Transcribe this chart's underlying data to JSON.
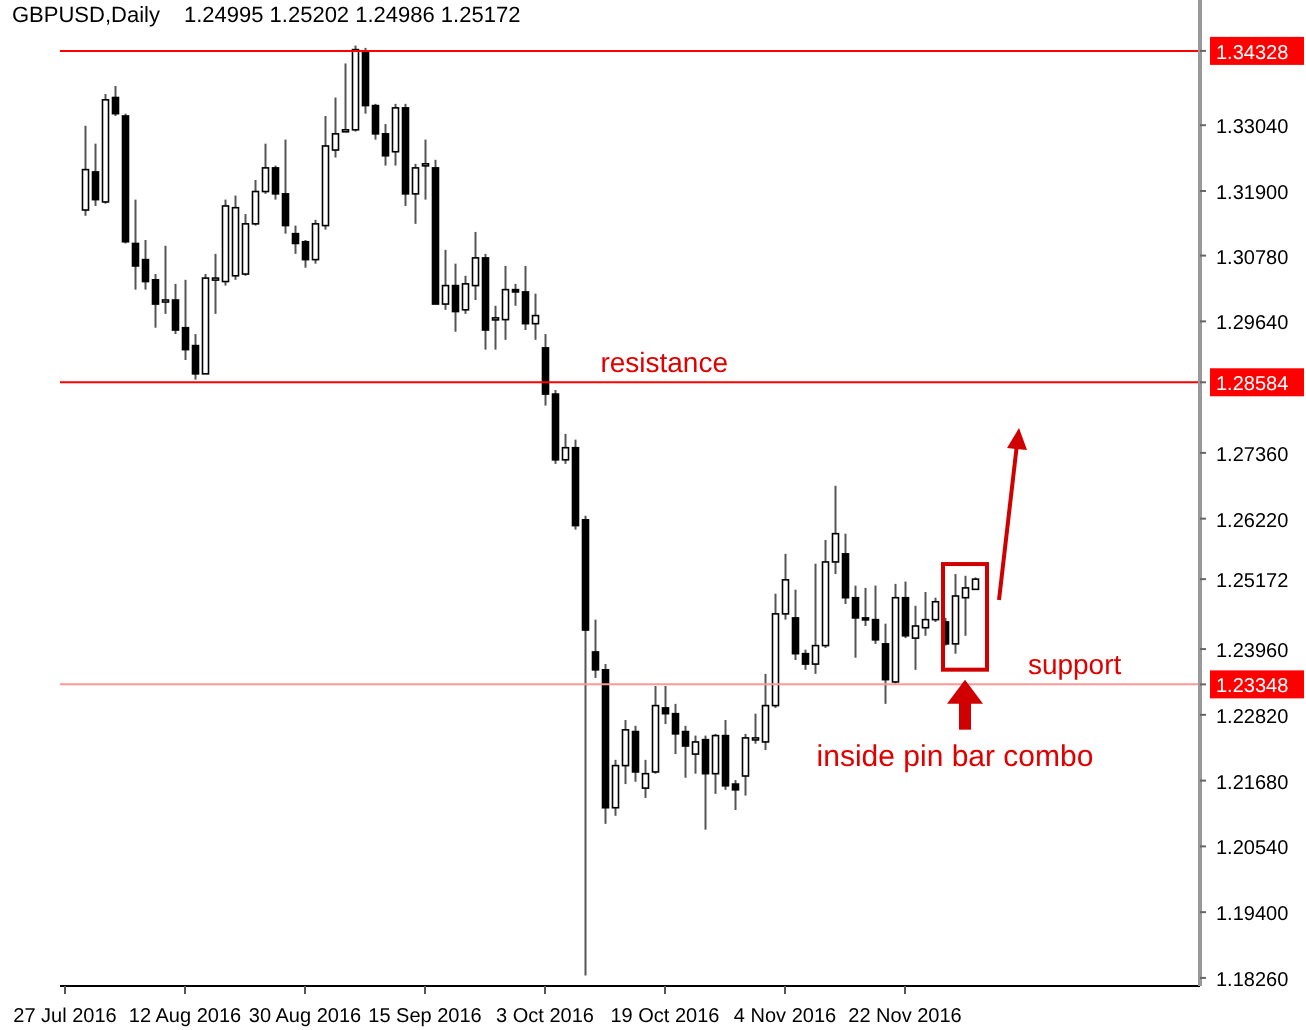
{
  "chart_data": {
    "type": "candlestick",
    "title": "GBPUSD,Daily",
    "subtitle": "1.24995 1.25202 1.24986 1.25172",
    "categories": [
      "27 Jul 2016",
      null,
      null,
      null,
      null,
      null,
      null,
      null,
      null,
      null,
      null,
      null,
      "12 Aug 2016",
      null,
      null,
      null,
      null,
      null,
      null,
      null,
      null,
      null,
      null,
      null,
      "30 Aug 2016",
      null,
      null,
      null,
      null,
      null,
      null,
      null,
      null,
      null,
      null,
      null,
      "15 Sep 2016",
      null,
      null,
      null,
      null,
      null,
      null,
      null,
      null,
      null,
      null,
      null,
      "3 Oct 2016",
      null,
      null,
      null,
      null,
      null,
      null,
      null,
      null,
      null,
      null,
      null,
      "19 Oct 2016",
      null,
      null,
      null,
      null,
      null,
      null,
      null,
      null,
      null,
      null,
      null,
      "4 Nov 2016",
      null,
      null,
      null,
      null,
      null,
      null,
      null,
      null,
      null,
      null,
      null,
      "22 Nov 2016",
      null,
      null,
      null,
      null,
      null,
      null,
      null,
      null,
      null,
      null,
      null,
      null,
      null,
      null,
      null,
      null,
      null,
      null,
      null,
      null,
      null,
      null,
      null,
      null,
      null,
      null,
      null,
      null,
      null
    ],
    "ohlc": [
      null,
      null,
      [
        1.3157,
        1.3303,
        1.3147,
        1.3227
      ],
      [
        1.3223,
        1.3272,
        1.3164,
        1.3175
      ],
      [
        1.3171,
        1.3358,
        1.3168,
        1.3348
      ],
      [
        1.3352,
        1.3372,
        1.332,
        1.3324
      ],
      [
        1.332,
        1.3324,
        1.3099,
        1.3102
      ],
      [
        1.3099,
        1.3175,
        1.3019,
        1.306
      ],
      [
        1.3071,
        1.3105,
        1.3019,
        1.3033
      ],
      [
        1.3036,
        1.3046,
        1.2953,
        1.2994
      ],
      [
        1.2998,
        1.3095,
        1.2977,
        1.3001
      ],
      [
        1.3001,
        1.3029,
        1.2942,
        1.2949
      ],
      [
        1.2953,
        1.3036,
        1.2897,
        1.2915
      ],
      [
        1.2922,
        1.2942,
        1.2863,
        1.2873
      ],
      [
        1.2873,
        1.3046,
        1.2873,
        1.3039
      ],
      [
        1.3036,
        1.3081,
        1.2977,
        1.3039
      ],
      [
        1.3033,
        1.3175,
        1.3026,
        1.3164
      ],
      [
        1.3043,
        1.3182,
        1.3036,
        1.3161
      ],
      [
        1.3046,
        1.315,
        1.3043,
        1.3133
      ],
      [
        1.3133,
        1.3209,
        1.313,
        1.3189
      ],
      [
        1.3189,
        1.3272,
        1.3185,
        1.323
      ],
      [
        1.323,
        1.3234,
        1.3175,
        1.3185
      ],
      [
        1.3185,
        1.3279,
        1.3116,
        1.313
      ],
      [
        1.3116,
        1.313,
        1.3081,
        1.3099
      ],
      [
        1.3102,
        1.3105,
        1.3057,
        1.3071
      ],
      [
        1.3071,
        1.314,
        1.3064,
        1.3133
      ],
      [
        1.313,
        1.332,
        1.3123,
        1.3268
      ],
      [
        1.3261,
        1.3352,
        1.3248,
        1.3289
      ],
      [
        1.3293,
        1.3411,
        1.3293,
        1.3296
      ],
      [
        1.3296,
        1.3442,
        1.3293,
        1.3435
      ],
      [
        1.3431,
        1.3438,
        1.3324,
        1.3338
      ],
      [
        1.3338,
        1.3341,
        1.3279,
        1.3289
      ],
      [
        1.3289,
        1.3306,
        1.3234,
        1.3251
      ],
      [
        1.3258,
        1.3341,
        1.3234,
        1.3334
      ],
      [
        1.3334,
        1.3341,
        1.3164,
        1.3185
      ],
      [
        1.3185,
        1.3237,
        1.3133,
        1.323
      ],
      [
        1.3234,
        1.3279,
        1.3175,
        1.3237
      ],
      [
        1.323,
        1.3244,
        1.2994,
        1.2994
      ],
      [
        1.2994,
        1.3088,
        1.2984,
        1.3026
      ],
      [
        1.3026,
        1.3064,
        1.2946,
        1.2981
      ],
      [
        1.2984,
        1.3043,
        1.2977,
        1.3029
      ],
      [
        1.3026,
        1.3119,
        1.3001,
        1.3074
      ],
      [
        1.3074,
        1.3081,
        1.2915,
        1.2949
      ],
      [
        1.2967,
        1.2991,
        1.2915,
        1.297
      ],
      [
        1.2967,
        1.306,
        1.2932,
        1.3019
      ],
      [
        1.3019,
        1.3029,
        1.2991,
        1.3015
      ],
      [
        1.3015,
        1.306,
        1.2949,
        1.296
      ],
      [
        1.296,
        1.3012,
        1.2932,
        1.2974
      ],
      [
        1.2918,
        1.2942,
        1.2818,
        1.2838
      ],
      [
        1.2838,
        1.2845,
        1.2717,
        1.2724
      ],
      [
        1.2724,
        1.2769,
        1.2717,
        1.2745
      ],
      [
        1.2745,
        1.2759,
        1.2603,
        1.261
      ],
      [
        1.262,
        1.2627,
        1.183,
        1.2429
      ],
      [
        1.2391,
        1.2447,
        1.2346,
        1.236
      ],
      [
        1.236,
        1.237,
        1.2093,
        1.2121
      ],
      [
        1.2121,
        1.2204,
        1.2107,
        1.2194
      ],
      [
        1.2194,
        1.2273,
        1.2162,
        1.2256
      ],
      [
        1.2253,
        1.2263,
        1.2166,
        1.2183
      ],
      [
        1.2155,
        1.2204,
        1.2138,
        1.218
      ],
      [
        1.2183,
        1.2332,
        1.218,
        1.2298
      ],
      [
        1.2294,
        1.2332,
        1.2266,
        1.2284
      ],
      [
        1.2284,
        1.2301,
        1.2214,
        1.2249
      ],
      [
        1.2253,
        1.2263,
        1.2173,
        1.2228
      ],
      [
        1.2214,
        1.2246,
        1.218,
        1.2235
      ],
      [
        1.2239,
        1.2246,
        1.2083,
        1.218
      ],
      [
        1.218,
        1.2249,
        1.2145,
        1.2246
      ],
      [
        1.2246,
        1.2273,
        1.2152,
        1.2159
      ],
      [
        1.2162,
        1.2169,
        1.2117,
        1.2152
      ],
      [
        1.2176,
        1.2249,
        1.2142,
        1.2242
      ],
      [
        1.2239,
        1.2284,
        1.2232,
        1.2242
      ],
      [
        1.2235,
        1.2353,
        1.2221,
        1.2298
      ],
      [
        1.2298,
        1.2492,
        1.2294,
        1.2457
      ],
      [
        1.2457,
        1.2561,
        1.2447,
        1.2516
      ],
      [
        1.245,
        1.2499,
        1.2377,
        1.2388
      ],
      [
        1.2388,
        1.2395,
        1.236,
        1.237
      ],
      [
        1.237,
        1.2544,
        1.2353,
        1.2402
      ],
      [
        1.2402,
        1.2585,
        1.2398,
        1.2547
      ],
      [
        1.2547,
        1.2679,
        1.2526,
        1.2596
      ],
      [
        1.2561,
        1.2596,
        1.2474,
        1.2485
      ],
      [
        1.2485,
        1.2506,
        1.2381,
        1.245
      ],
      [
        1.245,
        1.2502,
        1.2436,
        1.2447
      ],
      [
        1.2447,
        1.2506,
        1.2405,
        1.2412
      ],
      [
        1.2405,
        1.244,
        1.2301,
        1.2343
      ],
      [
        1.2339,
        1.2509,
        1.2336,
        1.2485
      ],
      [
        1.2485,
        1.2513,
        1.2415,
        1.2419
      ],
      [
        1.2415,
        1.2471,
        1.236,
        1.2436
      ],
      [
        1.2433,
        1.2495,
        1.2419,
        1.2447
      ],
      [
        1.2447,
        1.2485,
        1.2443,
        1.2478
      ],
      [
        1.2443,
        1.245,
        1.2402,
        1.2405
      ],
      [
        1.2405,
        1.2526,
        1.2388,
        1.2488
      ],
      [
        1.2485,
        1.2523,
        1.2419,
        1.2502
      ],
      [
        1.24995,
        1.25202,
        1.24986,
        1.25172
      ],
      null,
      null,
      null,
      null,
      null,
      null,
      null,
      null,
      null,
      null,
      null,
      null,
      null,
      null,
      null,
      null,
      null,
      null,
      null,
      null,
      null,
      null
    ],
    "ylim": [
      1.1812,
      1.3521
    ],
    "yticks": [
      {
        "value": 1.1826,
        "label": "1.18260"
      },
      {
        "value": 1.23348,
        "label": "1.23348"
      },
      {
        "value": 1.28584,
        "label": "1.28584"
      },
      {
        "value": 1.34328,
        "label": "1.34328"
      },
      {
        "value": 1.194,
        "label": "1.19400"
      },
      {
        "value": 1.2054,
        "label": "1.20540"
      },
      {
        "value": 1.2168,
        "label": "1.21680"
      },
      {
        "value": 1.2282,
        "label": "1.22820"
      },
      {
        "value": 1.2396,
        "label": "1.23960"
      },
      {
        "value": 1.25172,
        "label": "1.25172"
      },
      {
        "value": 1.2622,
        "label": "1.26220"
      },
      {
        "value": 1.2736,
        "label": "1.27360"
      },
      {
        "value": 1.2964,
        "label": "1.29640"
      },
      {
        "value": 1.3078,
        "label": "1.30780"
      },
      {
        "value": 1.319,
        "label": "1.31900"
      },
      {
        "value": 1.3304,
        "label": "1.33040"
      }
    ],
    "ref_lines": [
      {
        "axis": "y",
        "value": 1.34328,
        "color": "#ff0000"
      },
      {
        "axis": "y",
        "value": 1.28584,
        "label": "resistance",
        "color": "#ff0000"
      },
      {
        "axis": "y",
        "value": 1.23348,
        "label": "support",
        "color": "#ff9999"
      }
    ],
    "annotations": [
      "inside pin bar combo"
    ]
  }
}
